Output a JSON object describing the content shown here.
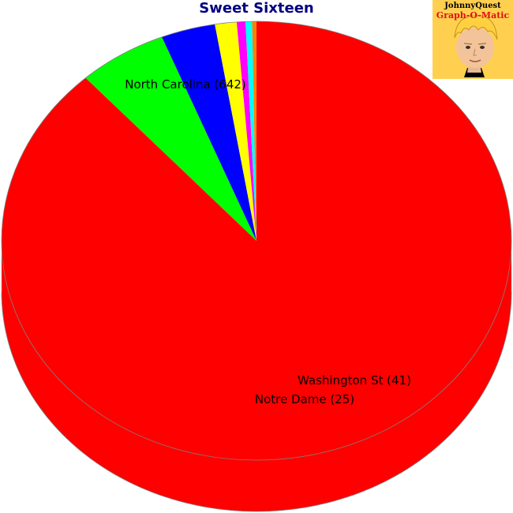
{
  "chart_data": {
    "type": "pie",
    "title": "Sweet Sixteen",
    "style": "3d-tilted",
    "slices": [
      {
        "label": "North Carolina (642)",
        "value": 642,
        "color": "#ff0000",
        "show_label": true
      },
      {
        "label": "Washington St (41)",
        "value": 41,
        "color": "#00ff00",
        "show_label": true
      },
      {
        "label": "Notre Dame (25)",
        "value": 25,
        "color": "#0000ff",
        "show_label": true
      },
      {
        "label": "",
        "value": 10,
        "color": "#ffff00",
        "show_label": false
      },
      {
        "label": "",
        "value": 4,
        "color": "#ff00ff",
        "show_label": false
      },
      {
        "label": "",
        "value": 3,
        "color": "#00ffff",
        "show_label": false
      },
      {
        "label": "",
        "value": 2,
        "color": "#ff8000",
        "show_label": false
      }
    ]
  },
  "logo": {
    "line1": "JohnnyQuest",
    "line2": "Graph-O-Matic"
  },
  "colors": {
    "title": "#000080",
    "logo_bg": "#ffd050",
    "logo_accent": "#e01010",
    "pie_outline": "#808080"
  }
}
